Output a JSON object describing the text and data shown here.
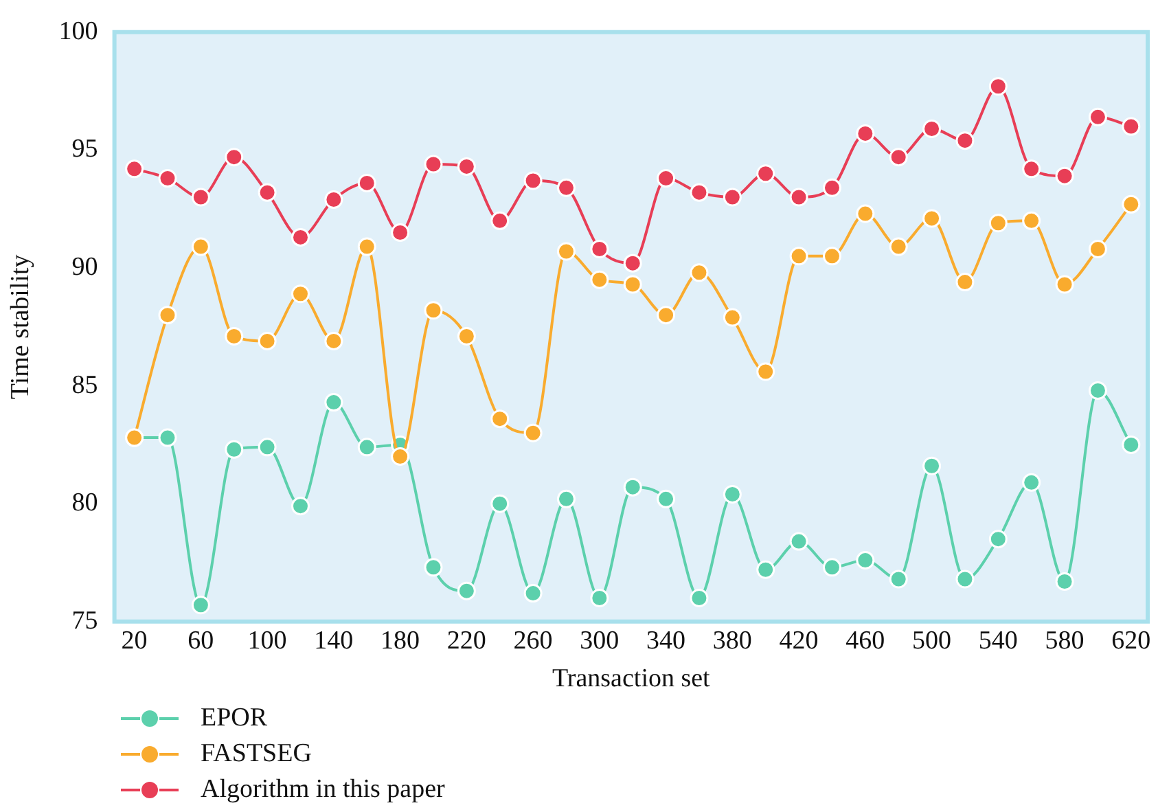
{
  "chart_data": {
    "type": "line",
    "xlabel": "Transaction set",
    "ylabel": "Time stability",
    "x": [
      20,
      40,
      60,
      80,
      100,
      120,
      140,
      160,
      180,
      200,
      220,
      240,
      260,
      280,
      300,
      320,
      340,
      360,
      380,
      400,
      420,
      440,
      460,
      480,
      500,
      520,
      540,
      560,
      580,
      600,
      620
    ],
    "xlim": [
      8,
      630
    ],
    "xticks": [
      20,
      60,
      100,
      140,
      180,
      220,
      260,
      300,
      340,
      380,
      420,
      460,
      500,
      540,
      580,
      620
    ],
    "ylim": [
      75,
      100
    ],
    "yticks": [
      75,
      80,
      85,
      90,
      95,
      100
    ],
    "grid": false,
    "legend": "bottom left",
    "marker": "circle",
    "line_style": "solid",
    "series": [
      {
        "name": "EPOR",
        "color": "#5cd0ac",
        "values": [
          82.8,
          82.8,
          75.7,
          82.3,
          82.4,
          79.9,
          84.3,
          82.4,
          82.5,
          77.3,
          76.3,
          80.0,
          76.2,
          80.2,
          76.0,
          80.7,
          80.2,
          76.0,
          80.4,
          77.2,
          78.4,
          77.3,
          77.6,
          76.8,
          81.6,
          76.8,
          78.5,
          80.9,
          76.7,
          84.8,
          82.5
        ]
      },
      {
        "name": "FASTSEG",
        "color": "#f9ab2e",
        "values": [
          82.8,
          88.0,
          90.9,
          87.1,
          86.9,
          88.9,
          86.9,
          90.9,
          82.0,
          88.2,
          87.1,
          83.6,
          83.0,
          90.7,
          89.5,
          89.3,
          88.0,
          89.8,
          87.9,
          85.6,
          90.5,
          90.5,
          92.3,
          90.9,
          92.1,
          89.4,
          91.9,
          92.0,
          89.3,
          90.8,
          92.7
        ]
      },
      {
        "name": "Algorithm in this paper",
        "color": "#e83e56",
        "values": [
          94.2,
          93.8,
          93.0,
          94.7,
          93.2,
          91.3,
          92.9,
          93.6,
          91.5,
          94.4,
          94.3,
          92.0,
          93.7,
          93.4,
          90.8,
          90.2,
          93.8,
          93.2,
          93.0,
          94.0,
          93.0,
          93.4,
          95.7,
          94.7,
          95.9,
          95.4,
          97.7,
          94.2,
          93.9,
          96.4,
          96.0
        ]
      }
    ]
  }
}
